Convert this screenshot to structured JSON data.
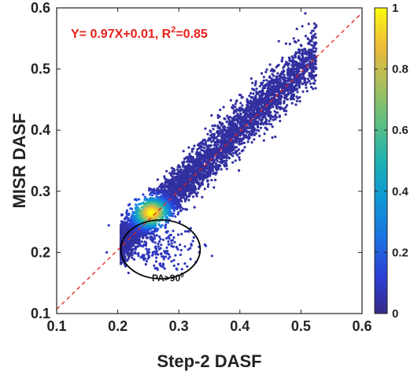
{
  "chart_data": {
    "type": "scatter",
    "title": "",
    "xlabel": "Step-2 DASF",
    "ylabel": "MISR DASF",
    "xlim": [
      0.1,
      0.6
    ],
    "ylim": [
      0.1,
      0.6
    ],
    "x_ticks": [
      "0.1",
      "0.2",
      "0.3",
      "0.4",
      "0.5",
      "0.6"
    ],
    "y_ticks": [
      "0.1",
      "0.2",
      "0.3",
      "0.4",
      "0.5",
      "0.6"
    ],
    "grid": false,
    "colormap": "parula",
    "colorbar": {
      "range": [
        0,
        1
      ],
      "ticks": [
        "0",
        "0.2",
        "0.4",
        "0.6",
        "0.8",
        "1"
      ],
      "placement": "right"
    },
    "equation_text": "Y= 0.97X+0.01, R",
    "equation_sup": "2",
    "equation_tail": "=0.85",
    "fit": {
      "slope": 0.97,
      "intercept": 0.01,
      "r2": 0.85,
      "style": "dashed",
      "color": "#e8201a"
    },
    "annotation": {
      "text": "PA>90",
      "sup": "0",
      "ellipse_center": [
        0.27,
        0.205
      ],
      "ellipse_radii": [
        0.065,
        0.048
      ]
    },
    "density_core": {
      "x": 0.255,
      "y": 0.265,
      "note_color": "#c81e1e"
    }
  }
}
